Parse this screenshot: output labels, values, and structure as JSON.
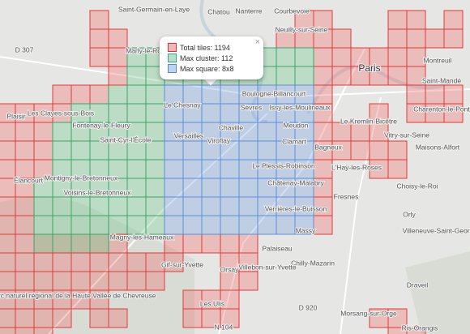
{
  "popup": {
    "close": "×",
    "rows": [
      "Total tiles: 1194",
      "Max cluster: 112",
      "Max square: 8x8"
    ]
  },
  "places": [
    "Saint-Germain-en-Laye",
    "Chatou",
    "Nanterre",
    "Courbevoie",
    "Neuilly-sur-Seine",
    "Paris",
    "Montreuil",
    "Marly-le-Roi",
    "Le Chesnay",
    "Boulogne-Billancourt",
    "Issy-les-Moulineaux",
    "Sèvres",
    "Versailles",
    "Chaville",
    "Viroflay",
    "Meudon",
    "Clamart",
    "Le Plessis-Robinson",
    "Châtenay-Malabry",
    "Verrières-le-Buisson",
    "Bagneux",
    "L'Haÿ-les-Roses",
    "Le Kremlin-Bicêtre",
    "Vitry-sur-Seine",
    "Saint-Mandé",
    "Charenton-le-Pont",
    "Maisons-Alfort",
    "Choisy-le-Roi",
    "Fresnes",
    "Orly",
    "Villeneuve-Saint-Georges",
    "Massy",
    "Palaiseau",
    "Chilly-Mazarin",
    "Villebon-sur-Yvette",
    "Orsay",
    "Gif-sur-Yvette",
    "Les Ulis",
    "Magny-les-Hameaux",
    "Montigny-le-Bretonneux",
    "Voisins-le-Bretonneux",
    "Saint-Cyr-l'École",
    "Fontenay-le-Fleury",
    "Les Clayes-sous-Bois",
    "Plaisir",
    "Élancourt",
    "Parc naturel régional de la Haute Vallée de Chevreuse",
    "Draveil",
    "Morsang-sur-Orge",
    "Ris-Orangis",
    "D 307",
    "N 104",
    "D 920"
  ]
}
